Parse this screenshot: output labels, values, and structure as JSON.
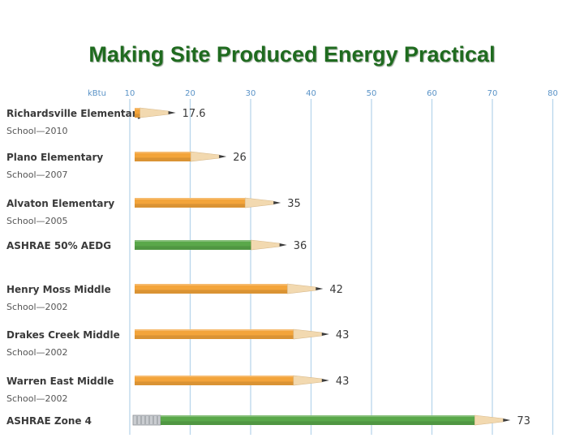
{
  "title": "Making Site Produced Energy Practical",
  "chart_data": {
    "type": "bar",
    "orientation": "horizontal",
    "unit_label": "kBtu",
    "x_ticks": [
      10,
      20,
      30,
      40,
      50,
      60,
      70,
      80
    ],
    "xlim": [
      10,
      80
    ],
    "grid": true,
    "categories": [
      {
        "name": "Richardsville Elementary",
        "sub": "School—2010"
      },
      {
        "name": "Plano Elementary",
        "sub": "School—2007"
      },
      {
        "name": "Alvaton Elementary",
        "sub": "School—2005"
      },
      {
        "name": "ASHRAE 50% AEDG",
        "sub": ""
      },
      {
        "name": "Henry Moss Middle",
        "sub": "School—2002"
      },
      {
        "name": "Drakes Creek Middle",
        "sub": "School—2002"
      },
      {
        "name": "Warren East Middle",
        "sub": "School—2002"
      },
      {
        "name": "ASHRAE Zone 4",
        "sub": ""
      }
    ],
    "values": [
      17.6,
      26,
      35,
      36,
      42,
      43,
      43,
      73
    ],
    "value_labels": [
      "17.6",
      "26",
      "35",
      "36",
      "42",
      "43",
      "43",
      "73"
    ],
    "bar_colors": [
      "#f3a43a",
      "#f3a43a",
      "#f3a43a",
      "#5aa84a",
      "#f3a43a",
      "#f3a43a",
      "#f3a43a",
      "#5aa84a"
    ],
    "bar_style": "pencil",
    "colors": {
      "pencil_orange": "#f3a43a",
      "pencil_green": "#5aa84a",
      "wood": "#f2d9b0",
      "lead": "#3b3b3b",
      "grid": "#b9d6ec",
      "axis_text": "#5a93c7"
    }
  }
}
